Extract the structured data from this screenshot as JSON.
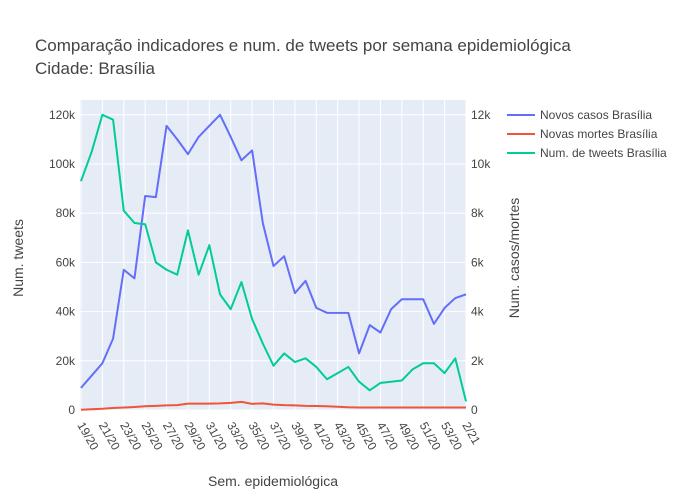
{
  "chart_data": {
    "type": "line",
    "title": "Comparação indicadores e num. de tweets por semana epidemiológica",
    "subtitle": "Cidade: Brasília",
    "xlabel": "Sem. epidemiológica",
    "ylabel_left": "Num. tweets",
    "ylabel_right": "Num. casos/mortes",
    "x_tick_labels": [
      "19/20",
      "21/20",
      "23/20",
      "25/20",
      "27/20",
      "29/20",
      "31/20",
      "33/20",
      "35/20",
      "37/20",
      "39/20",
      "41/20",
      "43/20",
      "45/20",
      "47/20",
      "49/20",
      "51/20",
      "53/20",
      "2/21"
    ],
    "x_tick_index": [
      0,
      2,
      4,
      6,
      8,
      10,
      12,
      14,
      16,
      18,
      20,
      22,
      24,
      26,
      28,
      30,
      32,
      34,
      36
    ],
    "x": [
      "19/20",
      "20/20",
      "21/20",
      "22/20",
      "23/20",
      "24/20",
      "25/20",
      "26/20",
      "27/20",
      "28/20",
      "29/20",
      "30/20",
      "31/20",
      "32/20",
      "33/20",
      "34/20",
      "35/20",
      "36/20",
      "37/20",
      "38/20",
      "39/20",
      "40/20",
      "41/20",
      "42/20",
      "43/20",
      "44/20",
      "45/20",
      "46/20",
      "47/20",
      "48/20",
      "49/20",
      "50/20",
      "51/20",
      "52/20",
      "53/20",
      "1/21",
      "2/21"
    ],
    "ylim_left": [
      0,
      126000
    ],
    "ylim_right": [
      0,
      12600
    ],
    "left_ticks": [
      0,
      20000,
      40000,
      60000,
      80000,
      100000,
      120000
    ],
    "left_tick_labels": [
      "0",
      "20k",
      "40k",
      "60k",
      "80k",
      "100k",
      "120k"
    ],
    "right_ticks": [
      0,
      2000,
      4000,
      6000,
      8000,
      10000,
      12000
    ],
    "right_tick_labels": [
      "0",
      "2k",
      "4k",
      "6k",
      "8k",
      "10k",
      "12k"
    ],
    "grid": true,
    "legend_position": "top-right",
    "series": [
      {
        "name": "Novos casos Brasília",
        "axis": "right",
        "color": "#636efa",
        "values": [
          900,
          1400,
          1900,
          2900,
          5700,
          5350,
          8700,
          8650,
          11550,
          11000,
          10400,
          11100,
          11550,
          12000,
          11100,
          10150,
          10550,
          7600,
          5850,
          6250,
          4750,
          5250,
          4150,
          3950,
          3950,
          3950,
          2300,
          3450,
          3150,
          4100,
          4500,
          4500,
          4500,
          3500,
          4150,
          4550,
          4700
        ]
      },
      {
        "name": "Novas mortes Brasília",
        "axis": "right",
        "color": "#ef553b",
        "values": [
          10,
          30,
          50,
          80,
          100,
          120,
          150,
          170,
          190,
          200,
          260,
          260,
          260,
          270,
          290,
          330,
          250,
          270,
          220,
          200,
          190,
          170,
          160,
          150,
          130,
          110,
          100,
          100,
          100,
          100,
          100,
          100,
          100,
          100,
          100,
          100,
          100
        ]
      },
      {
        "name": "Num. de tweets Brasília",
        "axis": "left",
        "color": "#00cc96",
        "values": [
          93000,
          105000,
          120000,
          118000,
          81000,
          76000,
          75500,
          60000,
          57000,
          55000,
          73000,
          55000,
          67000,
          47000,
          41000,
          52000,
          37000,
          27000,
          18000,
          23000,
          19500,
          21000,
          17500,
          12500,
          15000,
          17500,
          11500,
          8000,
          11000,
          11500,
          12000,
          16500,
          19000,
          19000,
          15000,
          21000,
          3500
        ]
      }
    ]
  }
}
